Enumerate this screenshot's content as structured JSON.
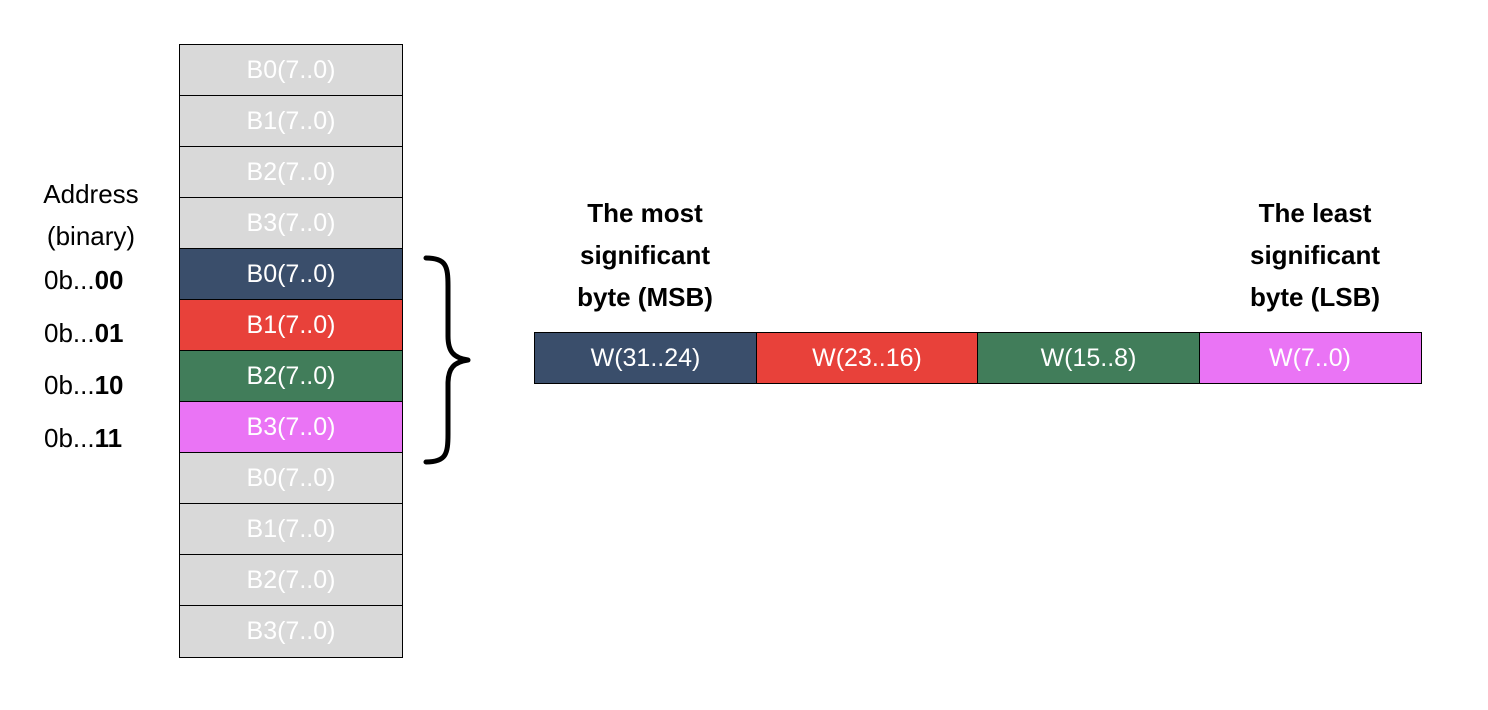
{
  "address_header": [
    "Address",
    "(binary)"
  ],
  "memory_cells": [
    {
      "label": "B0(7..0)",
      "color": "#d9d9d9"
    },
    {
      "label": "B1(7..0)",
      "color": "#d9d9d9"
    },
    {
      "label": "B2(7..0)",
      "color": "#d9d9d9"
    },
    {
      "label": "B3(7..0)",
      "color": "#d9d9d9"
    },
    {
      "label": "B0(7..0)",
      "color": "#3a4e6b"
    },
    {
      "label": "B1(7..0)",
      "color": "#e8413a"
    },
    {
      "label": "B2(7..0)",
      "color": "#417d5a"
    },
    {
      "label": "B3(7..0)",
      "color": "#ea74f5"
    },
    {
      "label": "B0(7..0)",
      "color": "#d9d9d9"
    },
    {
      "label": "B1(7..0)",
      "color": "#d9d9d9"
    },
    {
      "label": "B2(7..0)",
      "color": "#d9d9d9"
    },
    {
      "label": "B3(7..0)",
      "color": "#d9d9d9"
    }
  ],
  "addresses": [
    {
      "prefix": "0b...",
      "bits": "00"
    },
    {
      "prefix": "0b...",
      "bits": "01"
    },
    {
      "prefix": "0b...",
      "bits": "10"
    },
    {
      "prefix": "0b...",
      "bits": "11"
    }
  ],
  "msb_label": [
    "The most",
    "significant",
    "byte (MSB)"
  ],
  "lsb_label": [
    "The least",
    "significant",
    "byte (LSB)"
  ],
  "word_cells": [
    {
      "label": "W(31..24)",
      "color": "#3a4e6b"
    },
    {
      "label": "W(23..16)",
      "color": "#e8413a"
    },
    {
      "label": "W(15..8)",
      "color": "#417d5a"
    },
    {
      "label": "W(7..0)",
      "color": "#ea74f5"
    }
  ]
}
